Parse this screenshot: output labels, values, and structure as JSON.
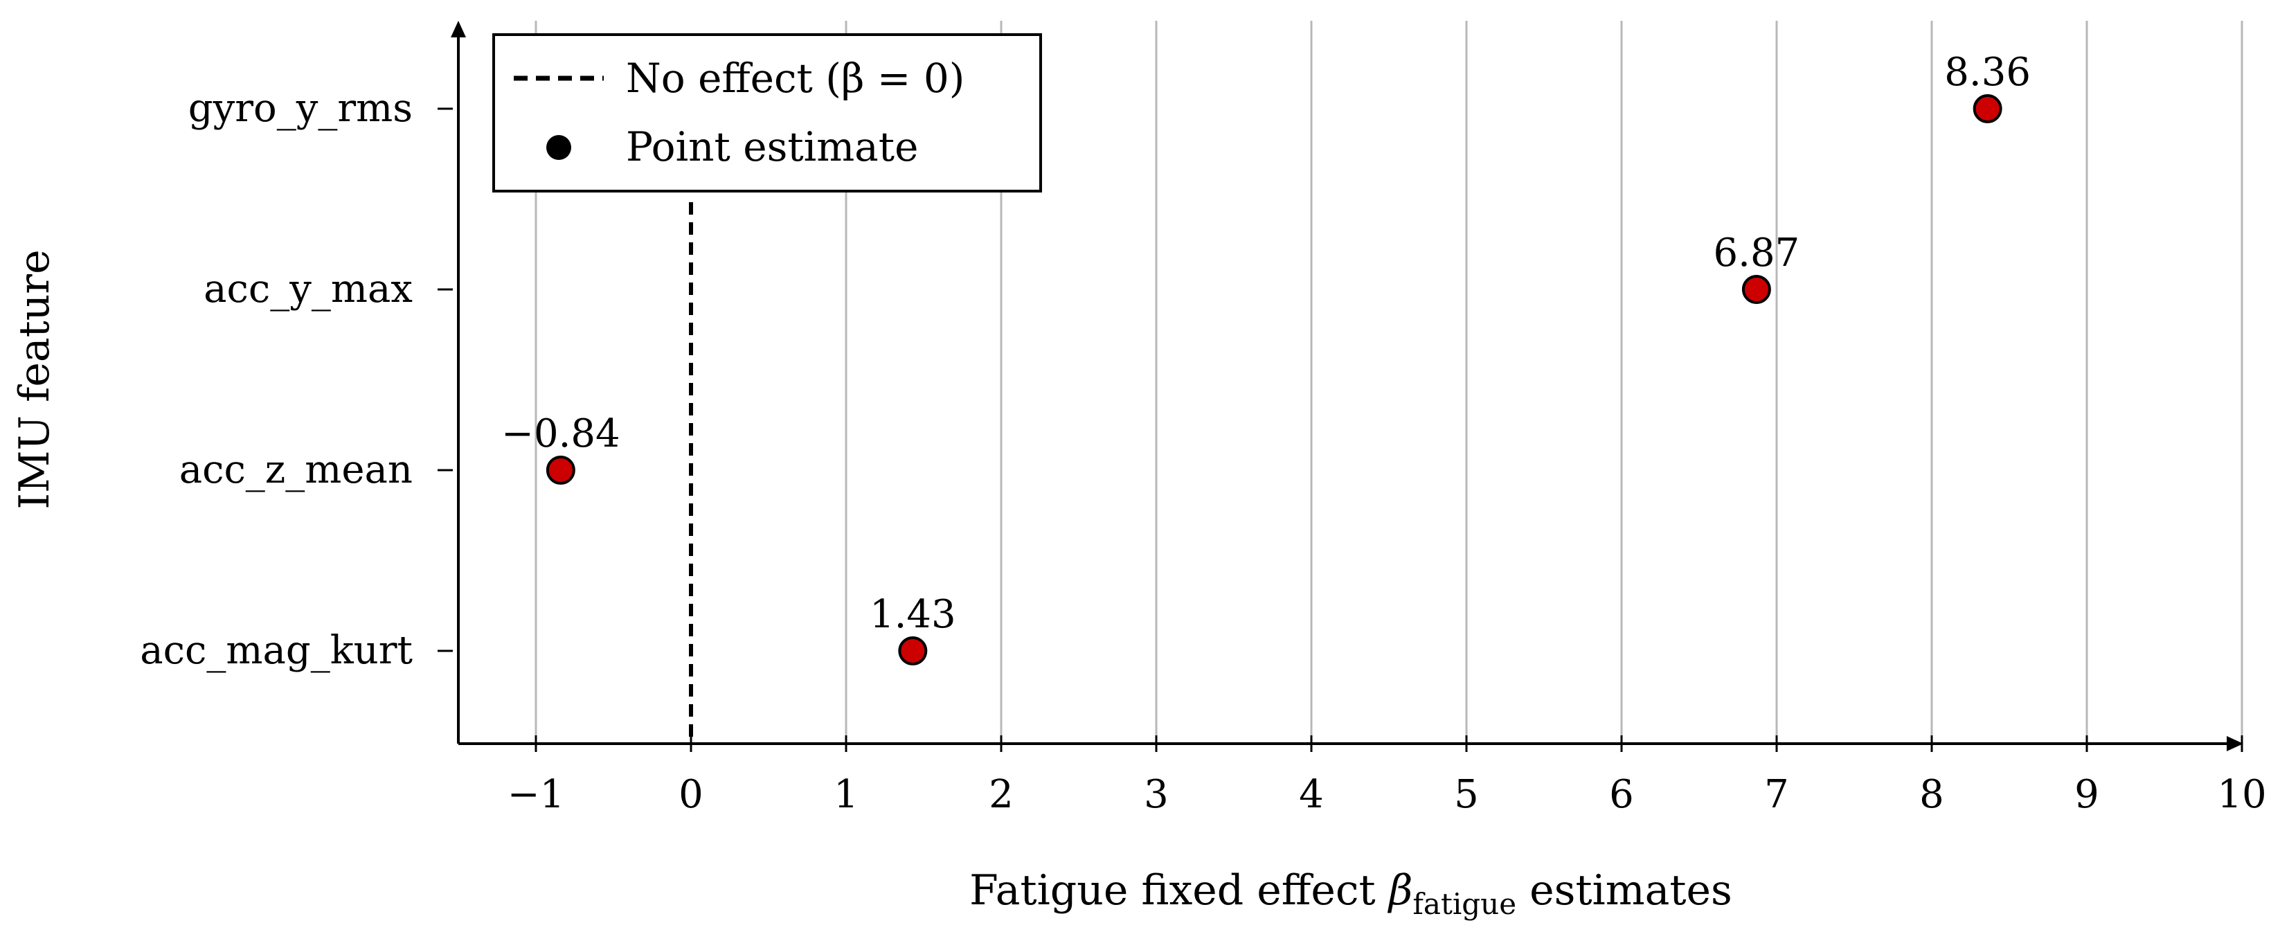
{
  "chart_data": {
    "type": "scatter",
    "title": "",
    "xlabel": {
      "prefix": "Fatigue fixed effect ",
      "symbol": "β",
      "subscript": "fatigue",
      "suffix": " estimates"
    },
    "ylabel": "IMU feature",
    "xlim": [
      -1.5,
      10
    ],
    "xticks": [
      -1,
      0,
      1,
      2,
      3,
      4,
      5,
      6,
      7,
      8,
      9,
      10
    ],
    "xtick_labels": [
      "−1",
      "0",
      "1",
      "2",
      "3",
      "4",
      "5",
      "6",
      "7",
      "8",
      "9",
      "10"
    ],
    "grid": "vertical",
    "categories": [
      "gyro_y_rms",
      "acc_y_max",
      "acc_z_mean",
      "acc_mag_kurt"
    ],
    "series": [
      {
        "name": "Point estimate",
        "values": [
          8.36,
          6.87,
          -0.84,
          1.43
        ],
        "labels": [
          "8.36",
          "6.87",
          "−0.84",
          "1.43"
        ],
        "color": "#cc0000"
      }
    ],
    "reference_line": {
      "x": 0,
      "style": "dashed",
      "color": "#000000",
      "legend": "No effect (β = 0)"
    },
    "legend": {
      "position": "top-left",
      "entries": [
        "No effect (β = 0)",
        "Point estimate"
      ]
    }
  }
}
